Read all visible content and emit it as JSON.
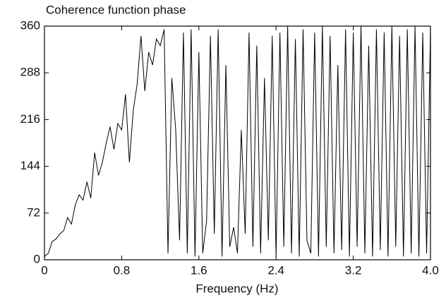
{
  "chart_data": {
    "type": "line",
    "title": "Coherence function phase",
    "x_label": "Frequency (Hz)",
    "x": [
      0,
      0.04,
      0.08,
      0.12,
      0.16,
      0.2,
      0.24,
      0.28,
      0.32,
      0.36,
      0.4,
      0.44,
      0.48,
      0.52,
      0.56,
      0.6,
      0.64,
      0.68,
      0.72,
      0.76,
      0.8,
      0.84,
      0.88,
      0.92,
      0.96,
      1.0,
      1.04,
      1.08,
      1.12,
      1.16,
      1.2,
      1.24,
      1.28,
      1.32,
      1.36,
      1.4,
      1.44,
      1.48,
      1.52,
      1.56,
      1.6,
      1.64,
      1.68,
      1.72,
      1.76,
      1.8,
      1.84,
      1.88,
      1.92,
      1.96,
      2.0,
      2.04,
      2.08,
      2.12,
      2.16,
      2.2,
      2.24,
      2.28,
      2.32,
      2.36,
      2.4,
      2.44,
      2.48,
      2.52,
      2.56,
      2.6,
      2.64,
      2.68,
      2.72,
      2.76,
      2.8,
      2.84,
      2.88,
      2.92,
      2.96,
      3.0,
      3.04,
      3.08,
      3.12,
      3.16,
      3.2,
      3.24,
      3.28,
      3.32,
      3.36,
      3.4,
      3.44,
      3.48,
      3.52,
      3.56,
      3.6,
      3.64,
      3.68,
      3.72,
      3.76,
      3.8,
      3.84,
      3.88,
      3.92,
      3.96,
      4.0
    ],
    "series": [
      {
        "color": "#000000",
        "values": [
          5,
          10,
          28,
          32,
          40,
          45,
          65,
          55,
          85,
          100,
          92,
          120,
          95,
          165,
          130,
          150,
          180,
          205,
          170,
          210,
          200,
          255,
          150,
          230,
          270,
          345,
          260,
          320,
          300,
          340,
          330,
          355,
          10,
          280,
          200,
          30,
          350,
          10,
          355,
          5,
          320,
          10,
          60,
          345,
          40,
          355,
          5,
          300,
          20,
          50,
          10,
          200,
          40,
          350,
          20,
          330,
          10,
          280,
          30,
          345,
          5,
          350,
          20,
          360,
          10,
          340,
          5,
          355,
          30,
          10,
          350,
          5,
          360,
          20,
          345,
          10,
          300,
          15,
          355,
          5,
          350,
          20,
          360,
          10,
          330,
          5,
          355,
          15,
          350,
          5,
          360,
          20,
          345,
          5,
          355,
          10,
          360,
          5,
          350,
          10,
          355
        ]
      }
    ],
    "xlim": [
      0,
      4
    ],
    "xticks": [
      0,
      0.8,
      1.6,
      2.4,
      3.2,
      {
        "value": 4,
        "label": "4.0"
      }
    ],
    "ylim": [
      0,
      360
    ],
    "yticks": [
      0,
      72,
      144,
      216,
      288,
      360
    ]
  }
}
